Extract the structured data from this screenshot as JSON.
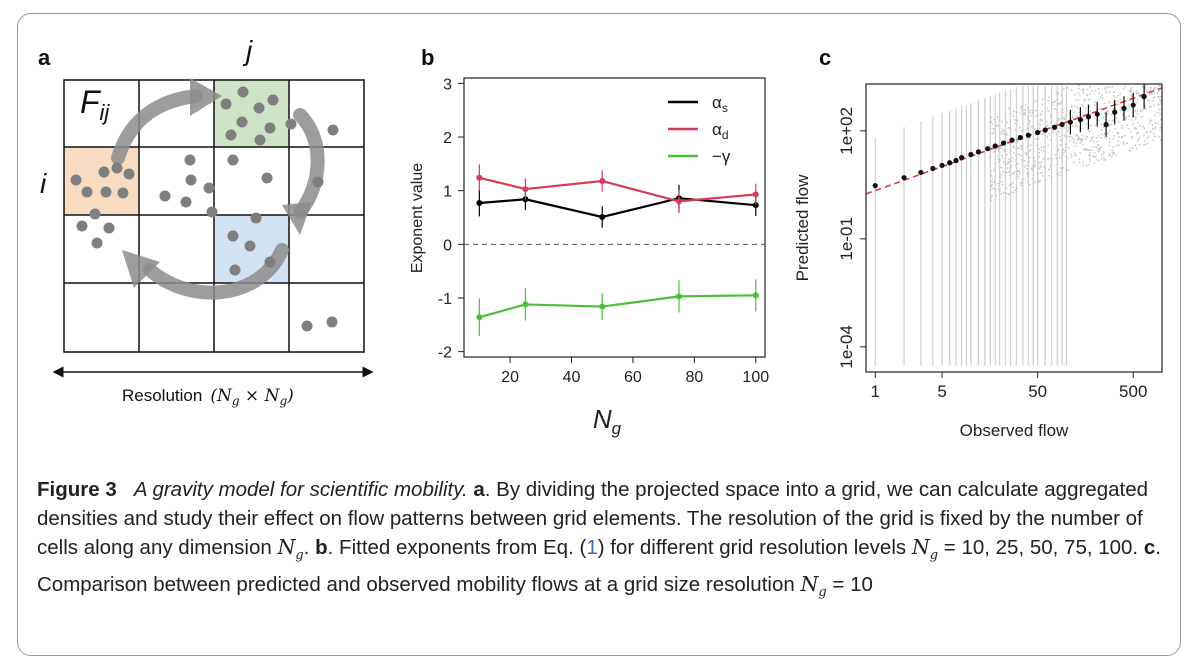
{
  "panels": {
    "a": {
      "letter": "a",
      "label_F": "F",
      "label_F_sub": "ij",
      "label_i": "i",
      "label_j": "j",
      "resolution_label": "Resolution",
      "resolution_math": "(N",
      "resolution_math_sub": "g",
      "resolution_math_mid": " × N",
      "resolution_math_end": ")",
      "colors": {
        "orange_cell": "#f8dcc1",
        "green_cell": "#cfe3c8",
        "blue_cell": "#d3e2f3",
        "dot": "#7f7f7f",
        "arrow": "#8c8c8c"
      }
    },
    "b": {
      "letter": "b"
    },
    "c": {
      "letter": "c"
    }
  },
  "chart_data": [
    {
      "type": "line",
      "panel": "b",
      "x": [
        10,
        25,
        50,
        75,
        100
      ],
      "series": [
        {
          "name": "αs",
          "name_main": "α",
          "name_sub": "s",
          "color": "#000000",
          "values": [
            0.77,
            0.84,
            0.51,
            0.86,
            0.73
          ],
          "err": [
            0.25,
            0.2,
            0.2,
            0.25,
            0.2
          ]
        },
        {
          "name": "αd",
          "name_main": "α",
          "name_sub": "d",
          "color": "#d43a5a",
          "values": [
            1.24,
            1.03,
            1.18,
            0.8,
            0.93
          ],
          "err": [
            0.25,
            0.2,
            0.2,
            0.22,
            0.2
          ]
        },
        {
          "name": "−γ",
          "name_main": "−γ",
          "name_sub": "",
          "color": "#4cbf3a",
          "values": [
            -1.36,
            -1.12,
            -1.16,
            -0.97,
            -0.95
          ],
          "err": [
            0.35,
            0.3,
            0.25,
            0.3,
            0.3
          ]
        }
      ],
      "xlabel": "N",
      "xlabel_sub": "g",
      "ylabel": "Exponent value",
      "xlim": [
        5,
        103
      ],
      "ylim": [
        -2.1,
        3.1
      ],
      "xticks": [
        20,
        40,
        60,
        80,
        100
      ],
      "yticks": [
        -2,
        -1,
        0,
        1,
        2,
        3
      ],
      "reference_line": 0,
      "legend": "top-right"
    },
    {
      "type": "scatter",
      "panel": "c",
      "scale": "log-log",
      "xlabel": "Observed flow",
      "ylabel": "Predicted flow",
      "xticks": [
        1,
        5,
        50,
        500
      ],
      "xtick_labels": [
        "1",
        "5",
        "50",
        "500"
      ],
      "yticks": [
        0.0001,
        0.1,
        100
      ],
      "ytick_labels": [
        "1e-04",
        "1e-01",
        "1e+02"
      ],
      "xlim": [
        0.8,
        1000
      ],
      "ylim": [
        2e-05,
        2000
      ],
      "binned_means": {
        "x": [
          1,
          2,
          3,
          4,
          5,
          6,
          7,
          8,
          10,
          12,
          15,
          18,
          22,
          27,
          33,
          40,
          50,
          60,
          75,
          90,
          110,
          140,
          170,
          210,
          260,
          320,
          400,
          500,
          650
        ],
        "y": [
          3,
          5,
          7,
          9,
          11,
          13,
          15,
          18,
          22,
          26,
          32,
          38,
          46,
          55,
          65,
          75,
          90,
          105,
          125,
          150,
          175,
          205,
          245,
          290,
          150,
          330,
          420,
          520,
          900
        ]
      },
      "fit_line": {
        "intercept_at_1": 2.2,
        "slope": 0.95,
        "color": "#e23b3b",
        "style": "dashed"
      },
      "points_color": "#c8c8c8"
    }
  ],
  "caption": {
    "figure_label": "Figure 3",
    "title_italic": "A gravity model for scientific mobility.",
    "a_label": "a",
    "a_text": ". By dividing the projected space into a grid, we can calculate aggregated densities and study their effect on flow patterns between grid elements. The resolution of the grid is fixed by the number of cells along any dimension ",
    "a_math": "N",
    "a_math_sub": "g",
    "a_end": ". ",
    "b_label": "b",
    "b_text": ". Fitted exponents from Eq. (",
    "b_ref": "1",
    "b_text2": ") for different grid resolution levels ",
    "b_math": "N",
    "b_math_sub": "g",
    "b_values": " = 10, 25, 50, 75, 100. ",
    "c_label": "c",
    "c_text": ". Comparison between predicted and observed mobility flows at a grid size resolution ",
    "c_math": "N",
    "c_math_sub": "g",
    "c_end": " = 10"
  }
}
